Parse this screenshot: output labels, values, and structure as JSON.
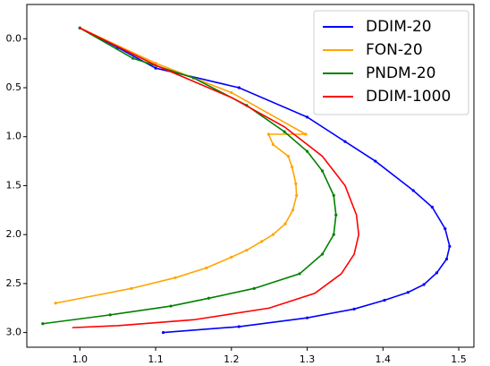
{
  "chart_data": {
    "type": "line",
    "xlim": [
      0.93,
      1.52
    ],
    "ylim": [
      -0.35,
      3.15
    ],
    "y_inverted": true,
    "legend": "upper right",
    "xticks": [
      {
        "value": 1.0,
        "label": "1.0"
      },
      {
        "value": 1.1,
        "label": "1.1"
      },
      {
        "value": 1.2,
        "label": "1.2"
      },
      {
        "value": 1.3,
        "label": "1.3"
      },
      {
        "value": 1.4,
        "label": "1.4"
      },
      {
        "value": 1.5,
        "label": "1.5"
      }
    ],
    "yticks": [
      {
        "value": 0.0,
        "label": "0.0"
      },
      {
        "value": 0.5,
        "label": "0.5"
      },
      {
        "value": 1.0,
        "label": "1.0"
      },
      {
        "value": 1.5,
        "label": "1.5"
      },
      {
        "value": 2.0,
        "label": "2.0"
      },
      {
        "value": 2.5,
        "label": "2.5"
      },
      {
        "value": 3.0,
        "label": "3.0"
      }
    ],
    "series": [
      {
        "name": "DDIM-20",
        "color": "#0000ff",
        "marker": true,
        "x": [
          1.0,
          1.05,
          1.1,
          1.21,
          1.3,
          1.35,
          1.39,
          1.44,
          1.465,
          1.482,
          1.488,
          1.484,
          1.471,
          1.454,
          1.433,
          1.402,
          1.362,
          1.3,
          1.21,
          1.11
        ],
        "values": [
          -0.11,
          0.09,
          0.3,
          0.5,
          0.8,
          1.05,
          1.25,
          1.55,
          1.72,
          1.94,
          2.12,
          2.25,
          2.39,
          2.51,
          2.59,
          2.67,
          2.76,
          2.85,
          2.94,
          3.0
        ]
      },
      {
        "name": "FON-20",
        "color": "#ffa500",
        "marker": true,
        "x": [
          1.0,
          1.1,
          1.2,
          1.298,
          1.249,
          1.255,
          1.275,
          1.28,
          1.285,
          1.286,
          1.281,
          1.271,
          1.255,
          1.24,
          1.22,
          1.2,
          1.167,
          1.126,
          1.068,
          0.968
        ],
        "values": [
          -0.11,
          0.25,
          0.55,
          0.975,
          0.975,
          1.08,
          1.2,
          1.31,
          1.48,
          1.6,
          1.75,
          1.89,
          2.0,
          2.07,
          2.16,
          2.23,
          2.34,
          2.44,
          2.55,
          2.7
        ]
      },
      {
        "name": "PNDM-20",
        "color": "#008000",
        "marker": true,
        "x": [
          1.0,
          1.07,
          1.15,
          1.22,
          1.27,
          1.3,
          1.32,
          1.335,
          1.338,
          1.335,
          1.32,
          1.29,
          1.23,
          1.17,
          1.12,
          1.04,
          0.951
        ],
        "values": [
          -0.11,
          0.2,
          0.4,
          0.68,
          0.95,
          1.15,
          1.35,
          1.6,
          1.8,
          2.0,
          2.2,
          2.4,
          2.55,
          2.65,
          2.73,
          2.82,
          2.91
        ]
      },
      {
        "name": "DDIM-1000",
        "color": "#ff0000",
        "marker": false,
        "x": [
          1.0,
          1.1,
          1.2,
          1.27,
          1.32,
          1.35,
          1.365,
          1.368,
          1.362,
          1.345,
          1.31,
          1.25,
          1.15,
          1.05,
          0.99
        ],
        "values": [
          -0.11,
          0.27,
          0.6,
          0.9,
          1.2,
          1.5,
          1.8,
          2.0,
          2.2,
          2.4,
          2.6,
          2.75,
          2.87,
          2.93,
          2.95
        ]
      }
    ]
  }
}
